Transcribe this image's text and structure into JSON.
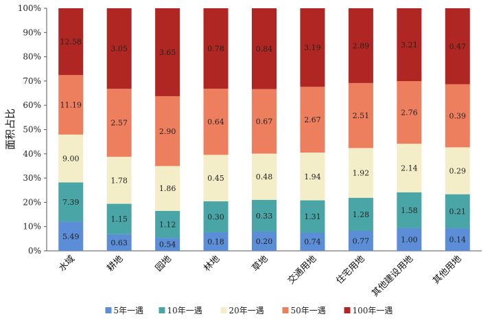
{
  "chart_data": {
    "type": "bar",
    "stacked": true,
    "normalized": true,
    "title": "",
    "ylabel": "面积占比",
    "xlabel": "",
    "ylim": [
      0,
      100
    ],
    "yticks": [
      "0%",
      "10%",
      "20%",
      "30%",
      "40%",
      "50%",
      "60%",
      "70%",
      "80%",
      "90%",
      "100%"
    ],
    "grid": false,
    "legend_position": "bottom",
    "categories": [
      "水域",
      "耕地",
      "园地",
      "林地",
      "草地",
      "交通用地",
      "住宅用地",
      "其他建设用地",
      "其他用地"
    ],
    "series": [
      {
        "name": "5年一遇",
        "color": "#5b8ed6",
        "values": [
          "5.49",
          "0.63",
          "0.54",
          "0.18",
          "0.20",
          "0.74",
          "0.77",
          "1.00",
          "0.14"
        ]
      },
      {
        "name": "10年一遇",
        "color": "#4aa6a6",
        "values": [
          "7.39",
          "1.15",
          "1.12",
          "0.30",
          "0.33",
          "1.31",
          "1.28",
          "1.58",
          "0.21"
        ]
      },
      {
        "name": "20年一遇",
        "color": "#f3edc8",
        "values": [
          "9.00",
          "1.78",
          "1.86",
          "0.45",
          "0.48",
          "1.94",
          "1.92",
          "2.14",
          "0.29"
        ]
      },
      {
        "name": "50年一遇",
        "color": "#ee7f5e",
        "values": [
          "11.19",
          "2.57",
          "2.90",
          "0.64",
          "0.67",
          "2.67",
          "2.51",
          "2.76",
          "0.39"
        ]
      },
      {
        "name": "100年一遇",
        "color": "#b02622",
        "values": [
          "12.58",
          "3.05",
          "3.65",
          "0.78",
          "0.84",
          "3.19",
          "2.89",
          "3.21",
          "0.47"
        ]
      }
    ]
  }
}
